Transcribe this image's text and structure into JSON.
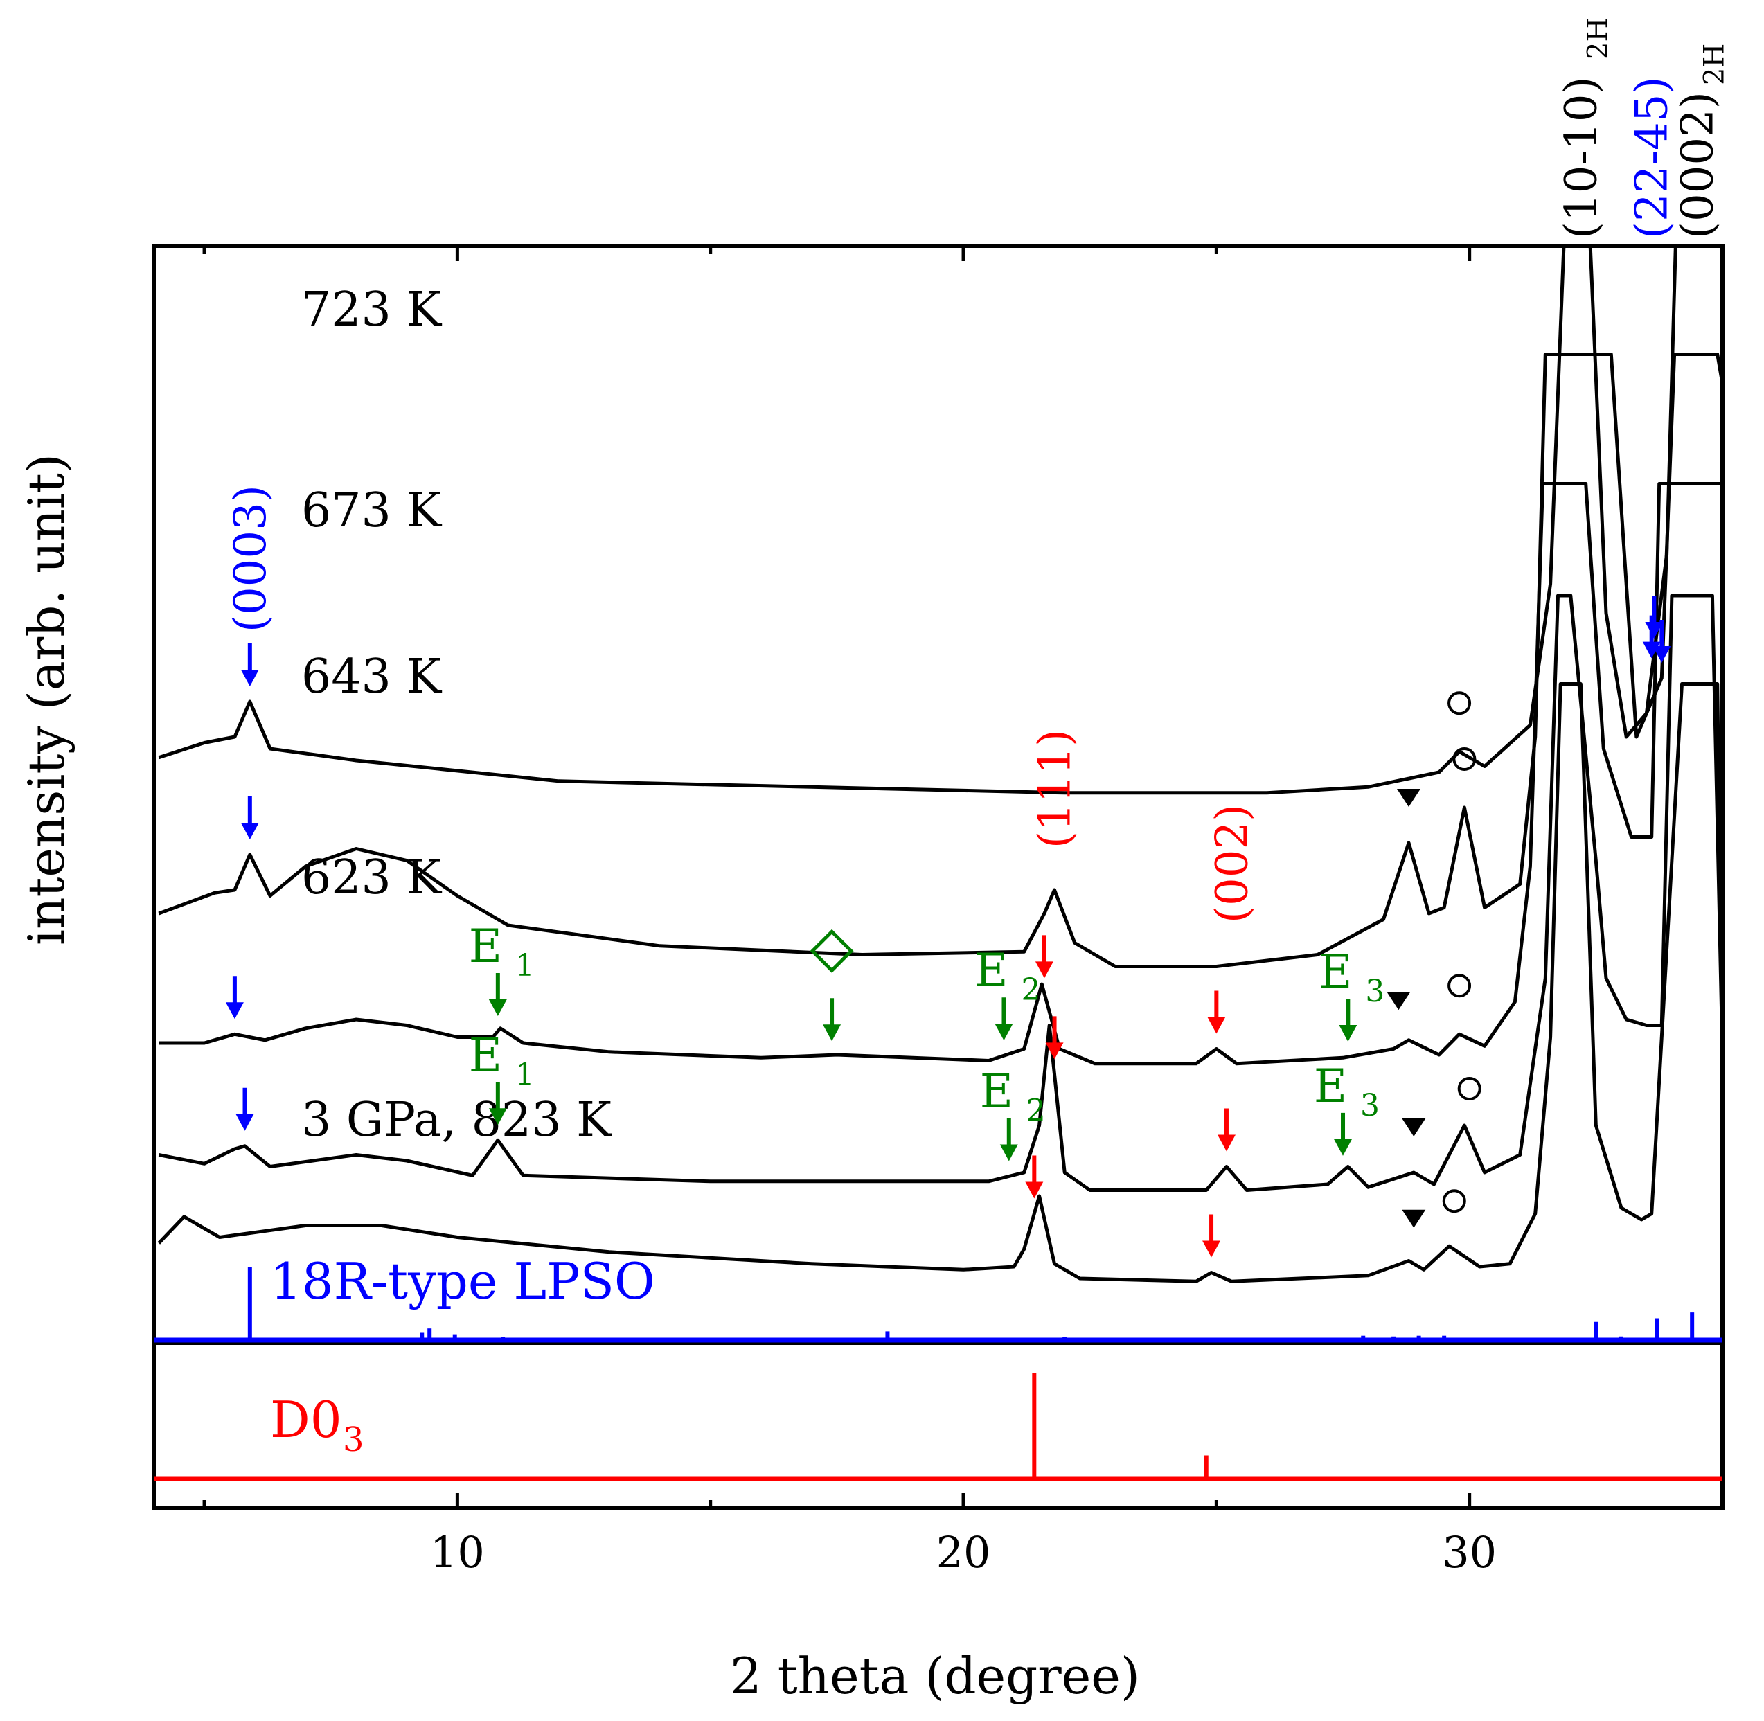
{
  "chart_data": {
    "type": "line",
    "xlabel": "2 theta (degree)",
    "ylabel": "intensity (arb. unit)",
    "xlim": [
      4,
      35
    ],
    "x_ticks": [
      10,
      20,
      30
    ],
    "x_minor_ticks": [
      5,
      15,
      25,
      35
    ],
    "grid": false,
    "series": [
      {
        "name": "723 K",
        "offset": 8.2,
        "points": [
          [
            4.1,
            0.05
          ],
          [
            5,
            0.3
          ],
          [
            5.6,
            0.4
          ],
          [
            5.9,
            1.0
          ],
          [
            6.3,
            0.2
          ],
          [
            8,
            0.0
          ],
          [
            12,
            -0.35
          ],
          [
            17,
            -0.45
          ],
          [
            22,
            -0.55
          ],
          [
            26,
            -0.55
          ],
          [
            28,
            -0.45
          ],
          [
            29.4,
            -0.2
          ],
          [
            29.8,
            0.15
          ],
          [
            30.3,
            -0.1
          ],
          [
            31.2,
            0.6
          ],
          [
            31.6,
            3.0
          ],
          [
            31.9,
            9.5
          ],
          [
            32.1,
            9.5
          ],
          [
            32.35,
            9.5
          ],
          [
            32.7,
            2.5
          ],
          [
            33.1,
            0.4
          ],
          [
            33.5,
            0.8
          ],
          [
            33.9,
            3.5
          ],
          [
            34.1,
            9.5
          ],
          [
            34.3,
            9.5
          ],
          [
            34.6,
            9.5
          ],
          [
            34.8,
            9.5
          ],
          [
            35,
            9.0
          ]
        ],
        "annotations": [
          {
            "label": "(0003)",
            "x": 5.9,
            "marker": "arrow",
            "color": "#0000ff"
          },
          {
            "label": "",
            "x": 29.8,
            "marker": "circle"
          },
          {
            "label": "",
            "x": 33.6,
            "marker": "arrow",
            "color": "#0000ff"
          },
          {
            "label": "",
            "x": 33.65,
            "marker": "arrow",
            "color": "#0000ff"
          }
        ]
      },
      {
        "name": "673 K",
        "offset": 5.6,
        "points": [
          [
            4.1,
            0.0
          ],
          [
            5.2,
            0.35
          ],
          [
            5.6,
            0.4
          ],
          [
            5.9,
            1.0
          ],
          [
            6.3,
            0.3
          ],
          [
            7,
            0.8
          ],
          [
            8,
            1.1
          ],
          [
            9,
            0.9
          ],
          [
            10,
            0.3
          ],
          [
            11,
            -0.2
          ],
          [
            14,
            -0.55
          ],
          [
            18,
            -0.7
          ],
          [
            21.2,
            -0.65
          ],
          [
            21.6,
            0.0
          ],
          [
            21.8,
            0.4
          ],
          [
            22.2,
            -0.5
          ],
          [
            23,
            -0.9
          ],
          [
            25,
            -0.9
          ],
          [
            27,
            -0.7
          ],
          [
            28.3,
            -0.1
          ],
          [
            28.8,
            1.2
          ],
          [
            29.2,
            0.0
          ],
          [
            29.5,
            0.1
          ],
          [
            29.9,
            1.8
          ],
          [
            30.3,
            0.1
          ],
          [
            31,
            0.5
          ],
          [
            31.3,
            3.0
          ],
          [
            31.5,
            9.5
          ],
          [
            31.8,
            9.5
          ],
          [
            32.4,
            9.5
          ],
          [
            32.8,
            9.5
          ],
          [
            33.3,
            3.0
          ],
          [
            33.8,
            4.0
          ],
          [
            34.05,
            9.5
          ],
          [
            34.5,
            9.5
          ],
          [
            34.9,
            9.5
          ],
          [
            35,
            9.0
          ]
        ],
        "annotations": [
          {
            "label": "",
            "x": 5.9,
            "marker": "arrow",
            "color": "#0000ff"
          },
          {
            "label": "(111)",
            "x": 21.8,
            "marker": "none",
            "color": "#ff0000"
          },
          {
            "label": "(002)",
            "x": 25.3,
            "marker": "none",
            "color": "#ff0000"
          },
          {
            "label": "",
            "x": 28.8,
            "marker": "triangle"
          },
          {
            "label": "",
            "x": 29.9,
            "marker": "circle"
          },
          {
            "label": "",
            "x": 33.8,
            "marker": "arrow",
            "color": "#0000ff"
          }
        ]
      },
      {
        "name": "643 K",
        "offset": 3.4,
        "points": [
          [
            4.1,
            0.0
          ],
          [
            5.0,
            0.0
          ],
          [
            5.6,
            0.15
          ],
          [
            6.2,
            0.05
          ],
          [
            7,
            0.25
          ],
          [
            8,
            0.4
          ],
          [
            9,
            0.3
          ],
          [
            10,
            0.1
          ],
          [
            10.7,
            0.1
          ],
          [
            10.85,
            0.25
          ],
          [
            11.3,
            0.0
          ],
          [
            13,
            -0.15
          ],
          [
            16,
            -0.25
          ],
          [
            17.5,
            -0.2
          ],
          [
            20.5,
            -0.3
          ],
          [
            21.2,
            -0.1
          ],
          [
            21.55,
            1.0
          ],
          [
            21.9,
            -0.1
          ],
          [
            22.6,
            -0.35
          ],
          [
            24.6,
            -0.35
          ],
          [
            25.0,
            -0.1
          ],
          [
            25.4,
            -0.35
          ],
          [
            27.5,
            -0.25
          ],
          [
            28.5,
            -0.1
          ],
          [
            28.8,
            0.05
          ],
          [
            29.4,
            -0.2
          ],
          [
            29.8,
            0.15
          ],
          [
            30.3,
            -0.05
          ],
          [
            30.9,
            0.7
          ],
          [
            31.2,
            3.0
          ],
          [
            31.45,
            9.5
          ],
          [
            31.8,
            9.5
          ],
          [
            32.3,
            9.5
          ],
          [
            32.65,
            5.0
          ],
          [
            33.2,
            3.5
          ],
          [
            33.6,
            3.5
          ],
          [
            33.75,
            9.5
          ],
          [
            35,
            9.5
          ]
        ],
        "annotations": [
          {
            "label": "",
            "x": 5.6,
            "marker": "arrow",
            "color": "#0000ff"
          },
          {
            "label": "E1",
            "x": 10.8,
            "marker": "arrow",
            "color": "#008000"
          },
          {
            "label": "",
            "x": 17.4,
            "marker": "diamond",
            "color": "#008000"
          },
          {
            "label": "E2",
            "x": 20.8,
            "marker": "arrow",
            "color": "#008000"
          },
          {
            "label": "",
            "x": 21.6,
            "marker": "arrow",
            "color": "#ff0000"
          },
          {
            "label": "",
            "x": 25.0,
            "marker": "arrow",
            "color": "#ff0000"
          },
          {
            "label": "E3",
            "x": 27.6,
            "marker": "arrow",
            "color": "#008000"
          },
          {
            "label": "",
            "x": 28.6,
            "marker": "triangle"
          },
          {
            "label": "",
            "x": 29.8,
            "marker": "circle"
          }
        ]
      },
      {
        "name": "623 K",
        "offset": 1.5,
        "points": [
          [
            4.1,
            0.0
          ],
          [
            5.0,
            -0.15
          ],
          [
            5.6,
            0.1
          ],
          [
            5.8,
            0.15
          ],
          [
            6.3,
            -0.2
          ],
          [
            8,
            0.0
          ],
          [
            9,
            -0.1
          ],
          [
            10.3,
            -0.35
          ],
          [
            10.8,
            0.25
          ],
          [
            11.3,
            -0.35
          ],
          [
            15,
            -0.45
          ],
          [
            20.5,
            -0.45
          ],
          [
            21.2,
            -0.3
          ],
          [
            21.5,
            0.5
          ],
          [
            21.7,
            2.2
          ],
          [
            22.0,
            -0.3
          ],
          [
            22.5,
            -0.6
          ],
          [
            24.8,
            -0.6
          ],
          [
            25.2,
            -0.2
          ],
          [
            25.6,
            -0.6
          ],
          [
            27.2,
            -0.5
          ],
          [
            27.6,
            -0.2
          ],
          [
            28.0,
            -0.55
          ],
          [
            28.9,
            -0.3
          ],
          [
            29.3,
            -0.5
          ],
          [
            29.9,
            0.5
          ],
          [
            30.3,
            -0.3
          ],
          [
            31.0,
            0.0
          ],
          [
            31.5,
            3.0
          ],
          [
            31.75,
            9.5
          ],
          [
            32.0,
            9.5
          ],
          [
            32.5,
            5.0
          ],
          [
            32.7,
            3.0
          ],
          [
            33.1,
            2.3
          ],
          [
            33.5,
            2.2
          ],
          [
            33.8,
            2.2
          ],
          [
            34.0,
            9.5
          ],
          [
            34.8,
            9.5
          ],
          [
            35,
            1.7
          ]
        ],
        "annotations": [
          {
            "label": "",
            "x": 5.8,
            "marker": "arrow",
            "color": "#0000ff"
          },
          {
            "label": "E1",
            "x": 10.8,
            "marker": "arrow",
            "color": "#008000"
          },
          {
            "label": "E2",
            "x": 20.9,
            "marker": "arrow",
            "color": "#008000"
          },
          {
            "label": "",
            "x": 21.8,
            "marker": "arrow",
            "color": "#ff0000"
          },
          {
            "label": "",
            "x": 25.2,
            "marker": "arrow",
            "color": "#ff0000"
          },
          {
            "label": "E3",
            "x": 27.5,
            "marker": "arrow",
            "color": "#008000"
          },
          {
            "label": "",
            "x": 28.9,
            "marker": "triangle"
          },
          {
            "label": "",
            "x": 30.0,
            "marker": "circle"
          }
        ]
      },
      {
        "name": "3 GPa, 823 K",
        "offset": 0.0,
        "points": [
          [
            4.1,
            0.0
          ],
          [
            4.6,
            0.45
          ],
          [
            5.3,
            0.1
          ],
          [
            7,
            0.3
          ],
          [
            8.5,
            0.3
          ],
          [
            10,
            0.1
          ],
          [
            13,
            -0.15
          ],
          [
            17,
            -0.35
          ],
          [
            20,
            -0.45
          ],
          [
            21.0,
            -0.4
          ],
          [
            21.2,
            -0.1
          ],
          [
            21.5,
            0.8
          ],
          [
            21.8,
            -0.35
          ],
          [
            22.3,
            -0.6
          ],
          [
            24.6,
            -0.65
          ],
          [
            24.9,
            -0.5
          ],
          [
            25.3,
            -0.65
          ],
          [
            28.0,
            -0.55
          ],
          [
            28.8,
            -0.3
          ],
          [
            29.1,
            -0.45
          ],
          [
            29.6,
            -0.05
          ],
          [
            30.2,
            -0.4
          ],
          [
            30.8,
            -0.35
          ],
          [
            31.3,
            0.5
          ],
          [
            31.6,
            3.5
          ],
          [
            31.8,
            9.5
          ],
          [
            32.2,
            9.5
          ],
          [
            32.5,
            2.0
          ],
          [
            33.0,
            0.6
          ],
          [
            33.4,
            0.4
          ],
          [
            33.6,
            0.5
          ],
          [
            34.2,
            9.5
          ],
          [
            34.9,
            9.5
          ],
          [
            35,
            3.0
          ]
        ],
        "annotations": [
          {
            "label": "",
            "x": 21.4,
            "marker": "arrow",
            "color": "#ff0000"
          },
          {
            "label": "",
            "x": 24.9,
            "marker": "arrow",
            "color": "#ff0000"
          },
          {
            "label": "",
            "x": 28.9,
            "marker": "triangle"
          },
          {
            "label": "",
            "x": 29.7,
            "marker": "circle"
          }
        ]
      }
    ],
    "top_labels": [
      {
        "x": 32.2,
        "text": "(10-10)",
        "sub": "2H",
        "color": "#000000"
      },
      {
        "x": 33.6,
        "text": "(22-45)",
        "sub": "",
        "color": "#0000ff"
      },
      {
        "x": 34.5,
        "text": "(0002)",
        "sub": "2H",
        "color": "#000000"
      }
    ],
    "reference_patterns": [
      {
        "name": "18R-type LPSO",
        "color": "#0000ff",
        "sticks": [
          [
            5.9,
            1.0
          ],
          [
            9.3,
            0.1
          ],
          [
            9.45,
            0.16
          ],
          [
            9.95,
            0.08
          ],
          [
            10.9,
            0.04
          ],
          [
            12.3,
            0.03
          ],
          [
            16.3,
            0.03
          ],
          [
            18.5,
            0.12
          ],
          [
            22.0,
            0.04
          ],
          [
            24.9,
            0.03
          ],
          [
            25.3,
            0.03
          ],
          [
            26.0,
            0.03
          ],
          [
            26.8,
            0.03
          ],
          [
            27.3,
            0.03
          ],
          [
            27.9,
            0.06
          ],
          [
            28.5,
            0.05
          ],
          [
            29.0,
            0.06
          ],
          [
            29.5,
            0.06
          ],
          [
            30.1,
            0.03
          ],
          [
            31.8,
            0.03
          ],
          [
            32.5,
            0.25
          ],
          [
            33.0,
            0.05
          ],
          [
            33.7,
            0.3
          ],
          [
            34.4,
            0.38
          ]
        ]
      },
      {
        "name": "D0",
        "name_sub": "3",
        "color": "#ff0000",
        "sticks": [
          [
            21.4,
            1.0
          ],
          [
            24.8,
            0.22
          ]
        ]
      }
    ],
    "marker_legend": {
      "circle": "○",
      "triangle": "▼",
      "diamond": "◇",
      "arrow": "↓"
    }
  }
}
